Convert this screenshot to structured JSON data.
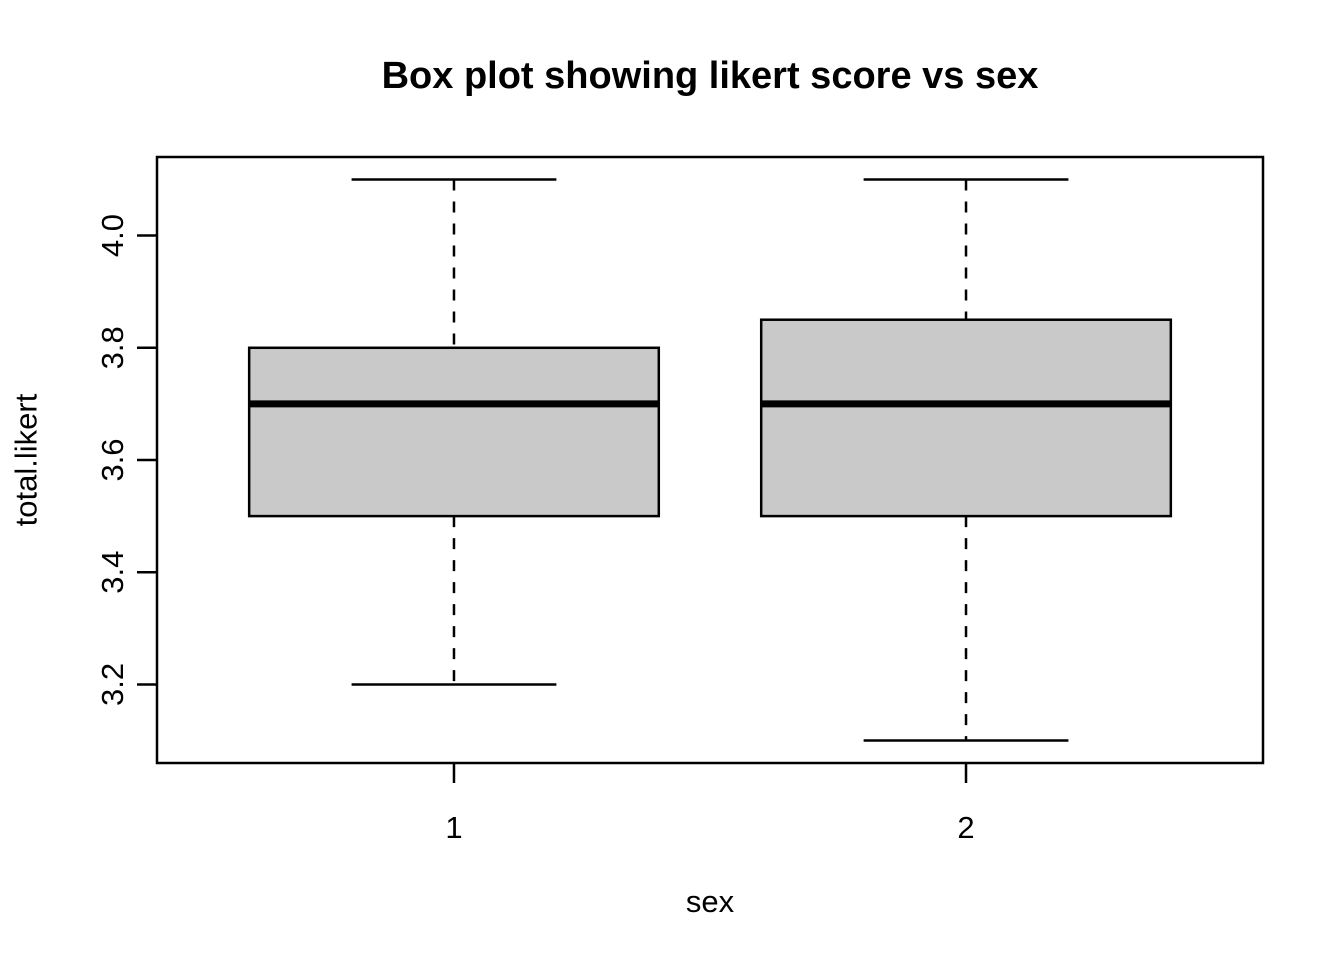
{
  "chart_data": {
    "type": "boxplot",
    "title": "Box plot showing likert score vs sex",
    "xlabel": "sex",
    "ylabel": "total.likert",
    "categories": [
      "1",
      "2"
    ],
    "series": [
      {
        "name": "1",
        "x": 1,
        "whisker_low": 3.2,
        "q1": 3.5,
        "median": 3.7,
        "q3": 3.8,
        "whisker_high": 4.1
      },
      {
        "name": "2",
        "x": 2,
        "whisker_low": 3.1,
        "q1": 3.5,
        "median": 3.7,
        "q3": 3.85,
        "whisker_high": 4.1
      }
    ],
    "y_ticks": [
      "3.2",
      "3.4",
      "3.6",
      "3.8",
      "4.0"
    ],
    "y_tick_values": [
      3.2,
      3.4,
      3.6,
      3.8,
      4.0
    ],
    "ylim": [
      3.06,
      4.14
    ],
    "xlim": [
      0.42,
      2.58
    ],
    "box_width": 0.8,
    "cap_width": 0.4,
    "grid": false,
    "legend": "none",
    "outliers": [],
    "colors": {
      "box_fill": "#C9C9C9",
      "line": "#000000",
      "background": "#FFFFFF"
    }
  }
}
